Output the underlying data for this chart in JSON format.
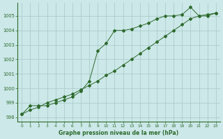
{
  "line1_x": [
    0,
    1,
    2,
    3,
    4,
    5,
    6,
    7,
    8,
    9,
    10,
    11,
    12,
    13,
    14,
    15,
    16,
    17,
    18,
    19,
    20,
    21,
    22,
    23
  ],
  "line1_y": [
    998.2,
    998.8,
    998.8,
    998.8,
    999.0,
    999.2,
    999.4,
    999.8,
    1000.5,
    1002.6,
    1003.1,
    1004.0,
    1004.0,
    1004.1,
    1004.3,
    1004.5,
    1004.8,
    1005.0,
    1005.0,
    1005.1,
    1005.6,
    1005.0,
    1005.0,
    1005.2
  ],
  "line2_x": [
    0,
    1,
    2,
    3,
    4,
    5,
    6,
    7,
    8,
    9,
    10,
    11,
    12,
    13,
    14,
    15,
    16,
    17,
    18,
    19,
    20,
    21,
    22,
    23
  ],
  "line2_y": [
    998.2,
    998.5,
    998.7,
    999.0,
    999.2,
    999.4,
    999.6,
    999.9,
    1000.2,
    1000.5,
    1000.9,
    1001.2,
    1001.6,
    1002.0,
    1002.4,
    1002.8,
    1003.2,
    1003.6,
    1004.0,
    1004.4,
    1004.8,
    1005.0,
    1005.1,
    1005.2
  ],
  "line_color": "#2d6a2d",
  "bg_color": "#cce8e8",
  "grid_color": "#a8c8c8",
  "xlabel": "Graphe pression niveau de la mer (hPa)",
  "ylim": [
    997.7,
    1005.9
  ],
  "yticks": [
    998,
    999,
    1000,
    1001,
    1002,
    1003,
    1004,
    1005
  ],
  "xlim": [
    -0.5,
    23.5
  ],
  "xticks": [
    0,
    1,
    2,
    3,
    4,
    5,
    6,
    7,
    8,
    9,
    10,
    11,
    12,
    13,
    14,
    15,
    16,
    17,
    18,
    19,
    20,
    21,
    22,
    23
  ]
}
